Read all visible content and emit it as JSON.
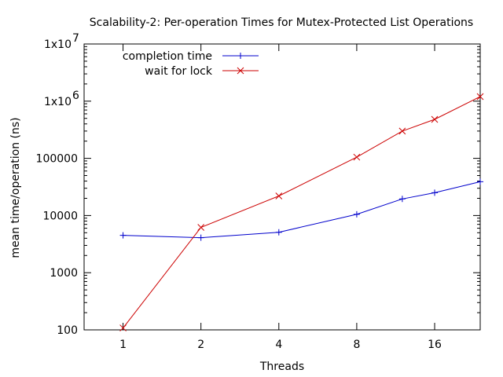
{
  "chart_data": {
    "type": "line",
    "title": "Scalability-2: Per-operation Times for Mutex-Protected List Operations",
    "xlabel": "Threads",
    "ylabel": "mean time/operation (ns)",
    "x_scale": "log2",
    "y_scale": "log10",
    "xlim": [
      0.7071,
      24
    ],
    "ylim": [
      100,
      10000000
    ],
    "x_ticks": [
      {
        "value": 1,
        "label": "1"
      },
      {
        "value": 2,
        "label": "2"
      },
      {
        "value": 4,
        "label": "4"
      },
      {
        "value": 8,
        "label": "8"
      },
      {
        "value": 16,
        "label": "16"
      }
    ],
    "y_ticks": [
      {
        "value": 100,
        "label": "100"
      },
      {
        "value": 1000,
        "label": "1000"
      },
      {
        "value": 10000,
        "label": "10000"
      },
      {
        "value": 100000,
        "label": "100000"
      },
      {
        "value": 1000000,
        "label": "1x10",
        "exp": "6"
      },
      {
        "value": 10000000,
        "label": "1x10",
        "exp": "7"
      }
    ],
    "grid": false,
    "legend_position": "top-left",
    "series": [
      {
        "name": "completion time",
        "color": "#0000cc",
        "marker": "plus",
        "x": [
          1,
          2,
          4,
          8,
          12,
          16,
          24
        ],
        "y": [
          4500,
          4100,
          5100,
          10500,
          19500,
          25000,
          39000
        ]
      },
      {
        "name": "wait for lock",
        "color": "#cc0000",
        "marker": "cross",
        "x": [
          1,
          2,
          4,
          8,
          12,
          16,
          24
        ],
        "y": [
          108,
          6200,
          22000,
          105000,
          300000,
          480000,
          1200000
        ]
      }
    ]
  }
}
